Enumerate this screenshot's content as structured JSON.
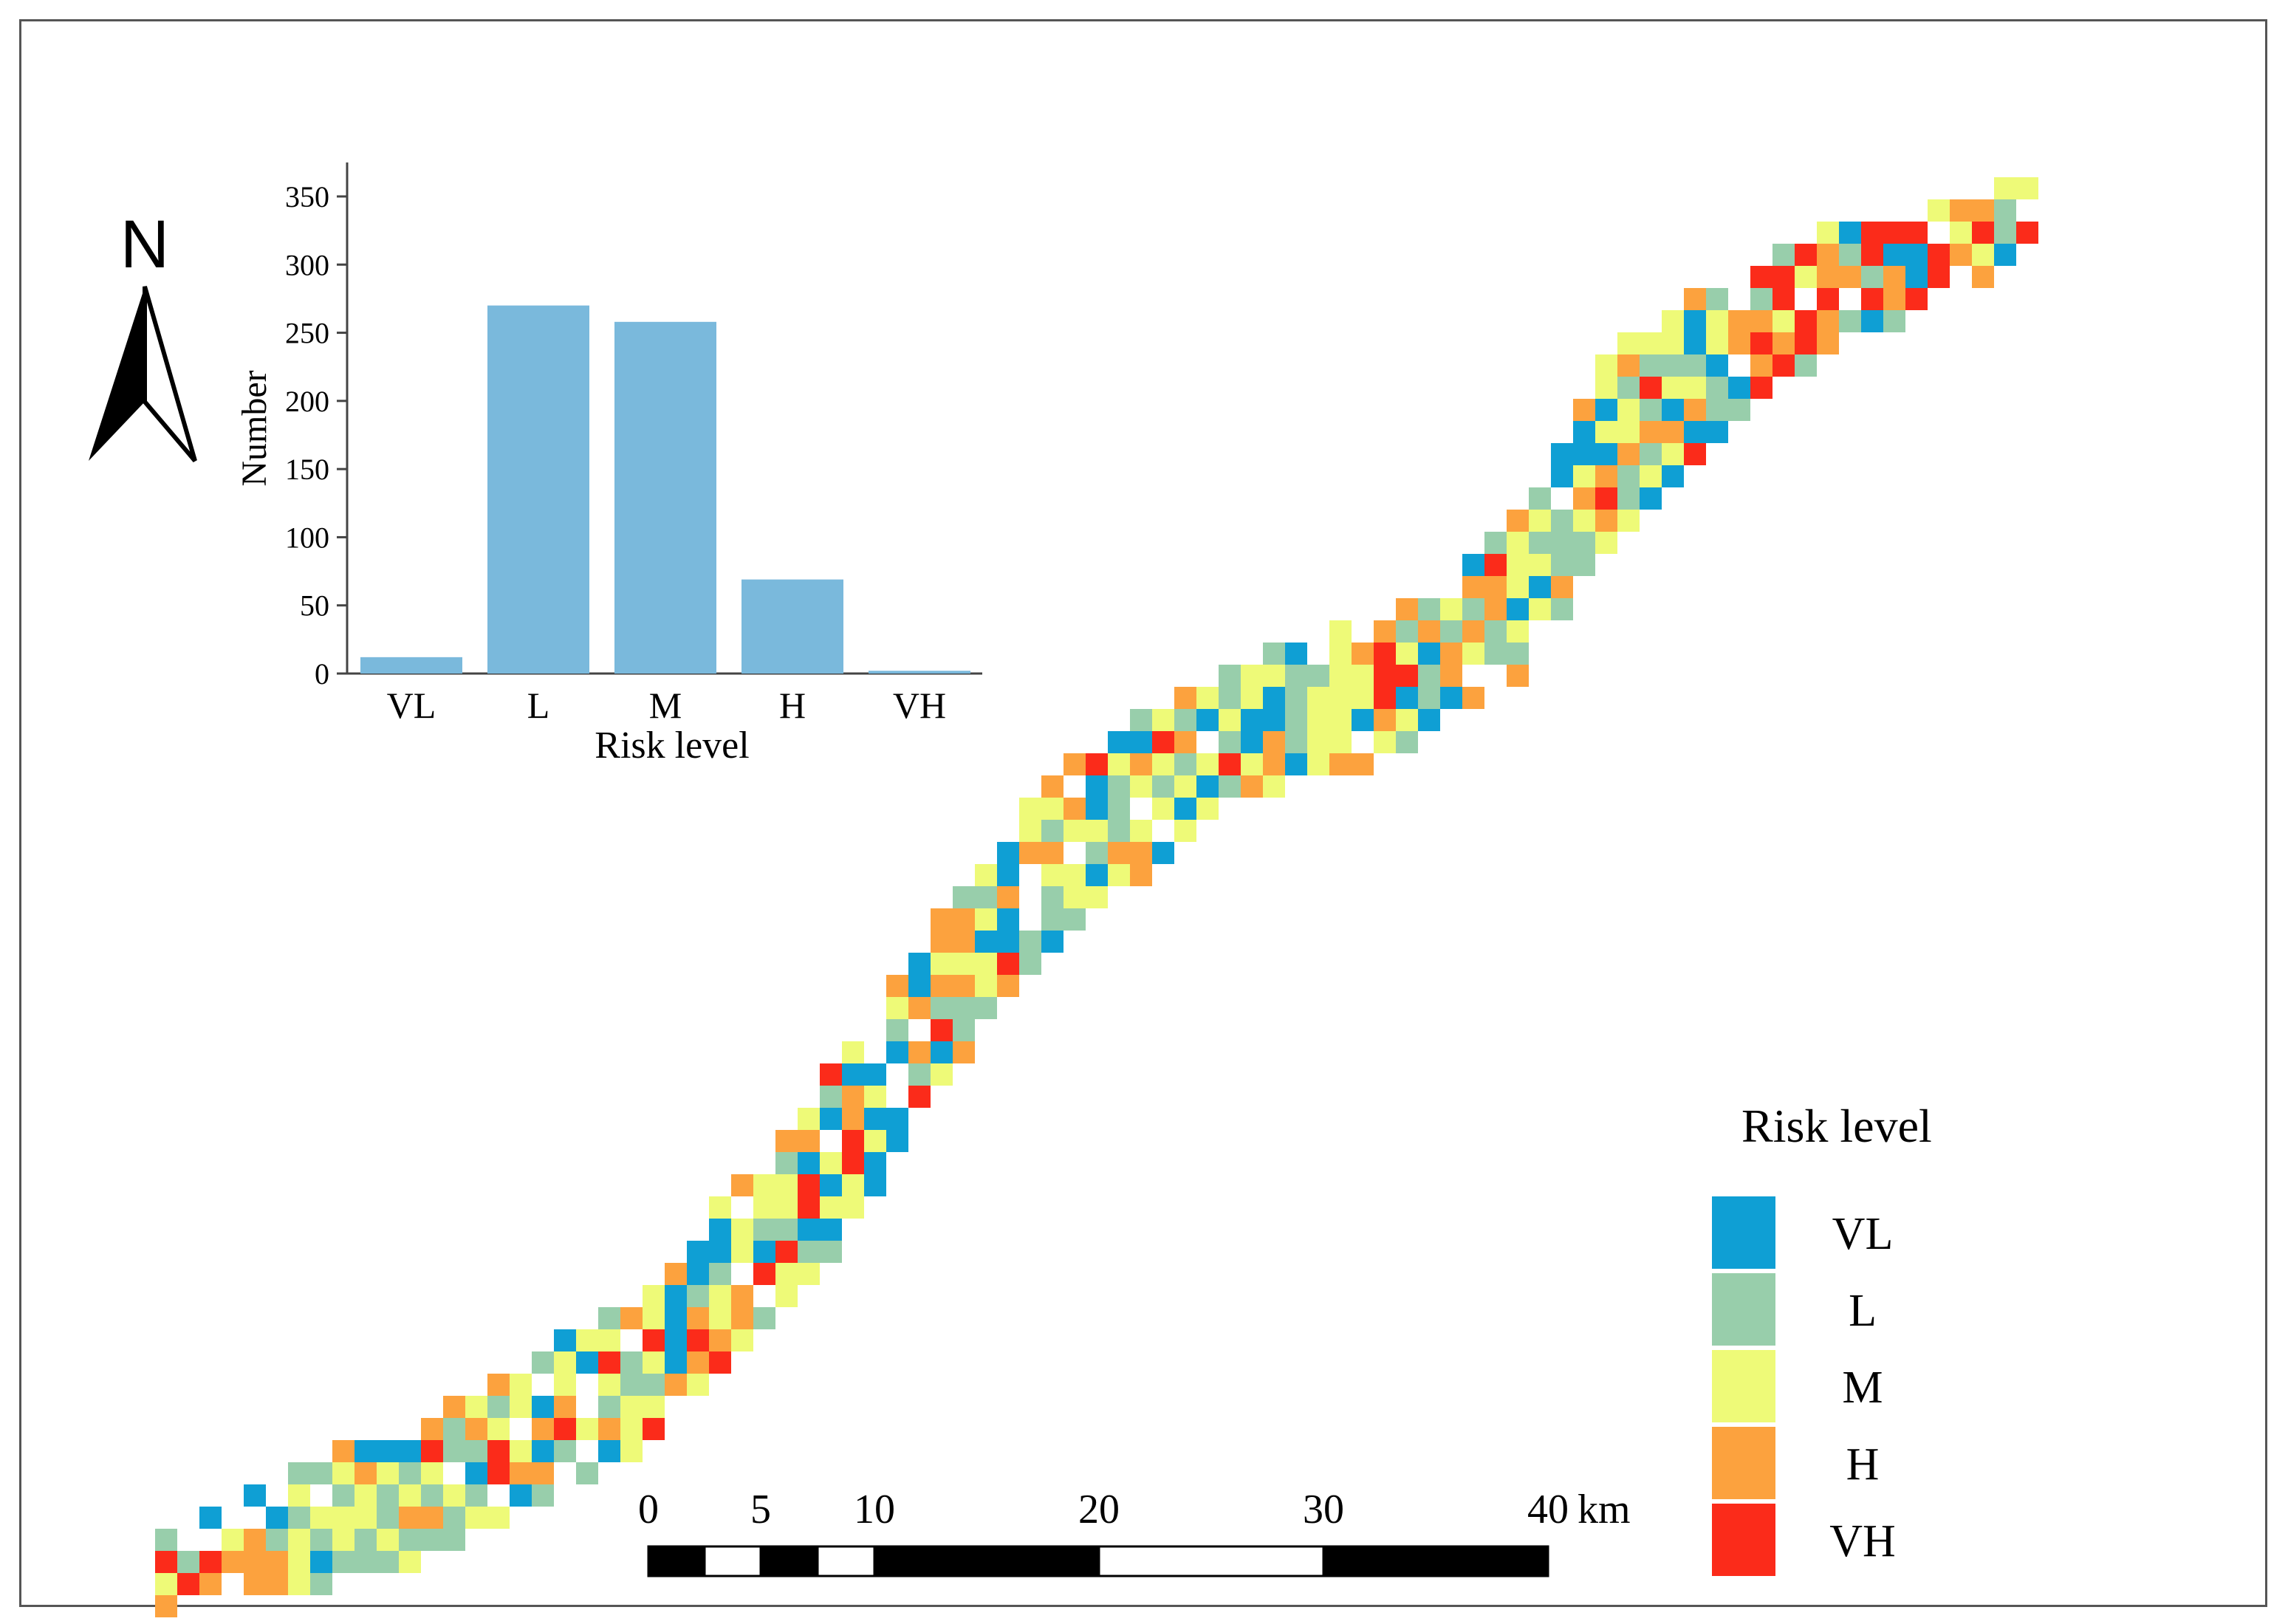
{
  "north_arrow": {
    "label": "N"
  },
  "histogram": {
    "type": "bar",
    "categories": [
      "VL",
      "L",
      "M",
      "H",
      "VH"
    ],
    "values": [
      12,
      270,
      258,
      69,
      2
    ],
    "ylabel": "Number",
    "xlabel": "Risk level",
    "ylim": [
      0,
      360
    ],
    "yticks": [
      "0",
      "50",
      "100",
      "150",
      "200",
      "250",
      "300",
      "350"
    ],
    "bar_color": "#7ab9dc"
  },
  "scale_bar": {
    "ticks": [
      "0",
      "5",
      "10",
      "20",
      "30",
      "40"
    ],
    "unit": "km"
  },
  "legend": {
    "title": "Risk level",
    "items": [
      {
        "label": "VL",
        "color": "#0f9fd4"
      },
      {
        "label": "L",
        "color": "#98ceab"
      },
      {
        "label": "M",
        "color": "#eefa78"
      },
      {
        "label": "H",
        "color": "#fca23e"
      },
      {
        "label": "VH",
        "color": "#fb2b1a"
      }
    ]
  },
  "risk_map": {
    "description_levels": [
      "VL",
      "L",
      "M",
      "H",
      "VH"
    ]
  }
}
